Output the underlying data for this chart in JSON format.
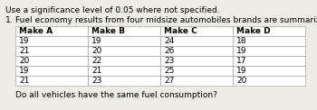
{
  "title_line1": "Use a significance level of 0.05 where not specified.",
  "question_num": "1.",
  "question_text": "Fuel economy results from four midsize automobiles brands are summarized below:",
  "col_headers": [
    "Make A",
    "Make B",
    "Make C",
    "Make D"
  ],
  "table_data": [
    [
      19,
      19,
      24,
      18
    ],
    [
      21,
      20,
      26,
      19
    ],
    [
      20,
      22,
      23,
      17
    ],
    [
      19,
      21,
      25,
      19
    ],
    [
      21,
      23,
      27,
      20
    ]
  ],
  "sub_question": "Do all vehicles have the same fuel consumption?",
  "bg_color": "#eeece4",
  "text_color": "#000000",
  "fontsize": 6.5
}
